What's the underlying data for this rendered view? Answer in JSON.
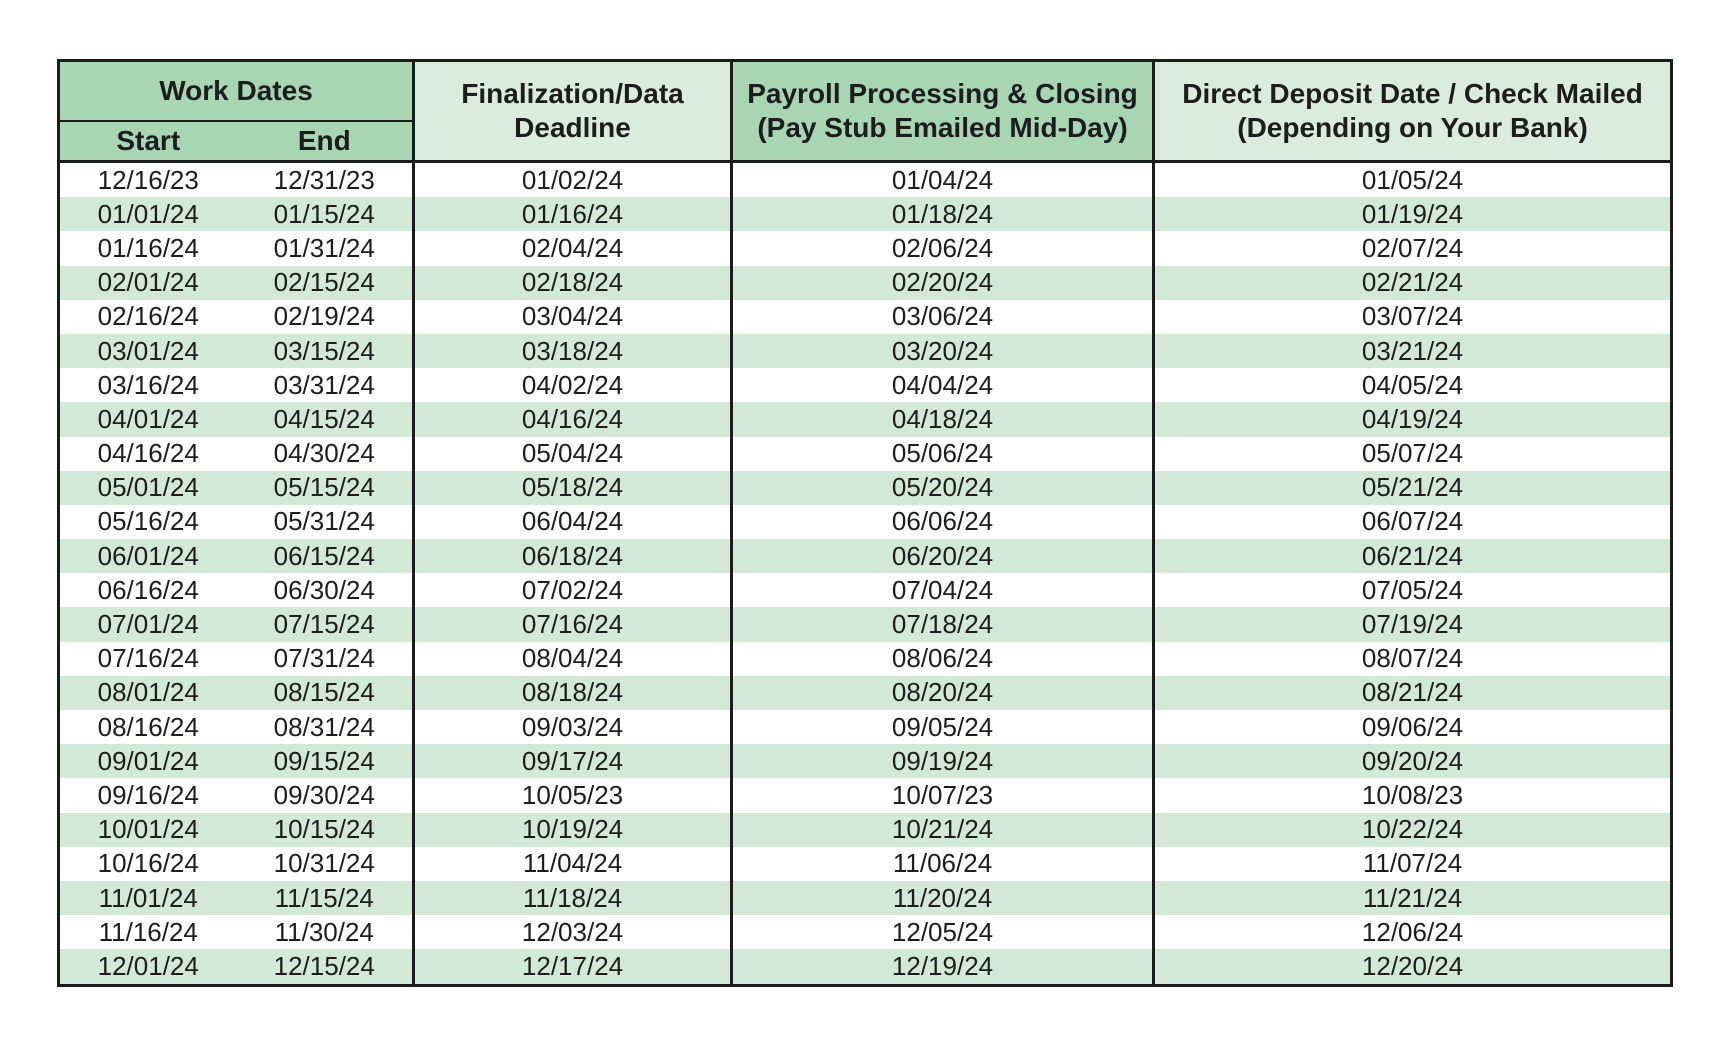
{
  "table": {
    "headers": {
      "work_dates": "Work Dates",
      "start": "Start",
      "end": "End",
      "finalization": "Finalization/Data\nDeadline",
      "payroll": "Payroll Processing & Closing\n(Pay Stub Emailed Mid-Day)",
      "direct_deposit": "Direct Deposit Date / Check Mailed\n(Depending on Your Bank)"
    },
    "columns": [
      "Start",
      "End",
      "Finalization/Data Deadline",
      "Payroll Processing & Closing (Pay Stub Emailed Mid-Day)",
      "Direct Deposit Date / Check Mailed (Depending on Your Bank)"
    ],
    "rows": [
      [
        "12/16/23",
        "12/31/23",
        "01/02/24",
        "01/04/24",
        "01/05/24"
      ],
      [
        "01/01/24",
        "01/15/24",
        "01/16/24",
        "01/18/24",
        "01/19/24"
      ],
      [
        "01/16/24",
        "01/31/24",
        "02/04/24",
        "02/06/24",
        "02/07/24"
      ],
      [
        "02/01/24",
        "02/15/24",
        "02/18/24",
        "02/20/24",
        "02/21/24"
      ],
      [
        "02/16/24",
        "02/19/24",
        "03/04/24",
        "03/06/24",
        "03/07/24"
      ],
      [
        "03/01/24",
        "03/15/24",
        "03/18/24",
        "03/20/24",
        "03/21/24"
      ],
      [
        "03/16/24",
        "03/31/24",
        "04/02/24",
        "04/04/24",
        "04/05/24"
      ],
      [
        "04/01/24",
        "04/15/24",
        "04/16/24",
        "04/18/24",
        "04/19/24"
      ],
      [
        "04/16/24",
        "04/30/24",
        "05/04/24",
        "05/06/24",
        "05/07/24"
      ],
      [
        "05/01/24",
        "05/15/24",
        "05/18/24",
        "05/20/24",
        "05/21/24"
      ],
      [
        "05/16/24",
        "05/31/24",
        "06/04/24",
        "06/06/24",
        "06/07/24"
      ],
      [
        "06/01/24",
        "06/15/24",
        "06/18/24",
        "06/20/24",
        "06/21/24"
      ],
      [
        "06/16/24",
        "06/30/24",
        "07/02/24",
        "07/04/24",
        "07/05/24"
      ],
      [
        "07/01/24",
        "07/15/24",
        "07/16/24",
        "07/18/24",
        "07/19/24"
      ],
      [
        "07/16/24",
        "07/31/24",
        "08/04/24",
        "08/06/24",
        "08/07/24"
      ],
      [
        "08/01/24",
        "08/15/24",
        "08/18/24",
        "08/20/24",
        "08/21/24"
      ],
      [
        "08/16/24",
        "08/31/24",
        "09/03/24",
        "09/05/24",
        "09/06/24"
      ],
      [
        "09/01/24",
        "09/15/24",
        "09/17/24",
        "09/19/24",
        "09/20/24"
      ],
      [
        "09/16/24",
        "09/30/24",
        "10/05/23",
        "10/07/23",
        "10/08/23"
      ],
      [
        "10/01/24",
        "10/15/24",
        "10/19/24",
        "10/21/24",
        "10/22/24"
      ],
      [
        "10/16/24",
        "10/31/24",
        "11/04/24",
        "11/06/24",
        "11/07/24"
      ],
      [
        "11/01/24",
        "11/15/24",
        "11/18/24",
        "11/20/24",
        "11/21/24"
      ],
      [
        "11/16/24",
        "11/30/24",
        "12/03/24",
        "12/05/24",
        "12/06/24"
      ],
      [
        "12/01/24",
        "12/15/24",
        "12/17/24",
        "12/19/24",
        "12/20/24"
      ]
    ],
    "colors": {
      "header_medium_green": "#a8d5b2",
      "header_light_green": "#d9ecdd",
      "row_stripe_green": "#d2e9d7",
      "row_white": "#ffffff",
      "border": "#1c1c1c",
      "text": "#1d1d1d"
    }
  }
}
